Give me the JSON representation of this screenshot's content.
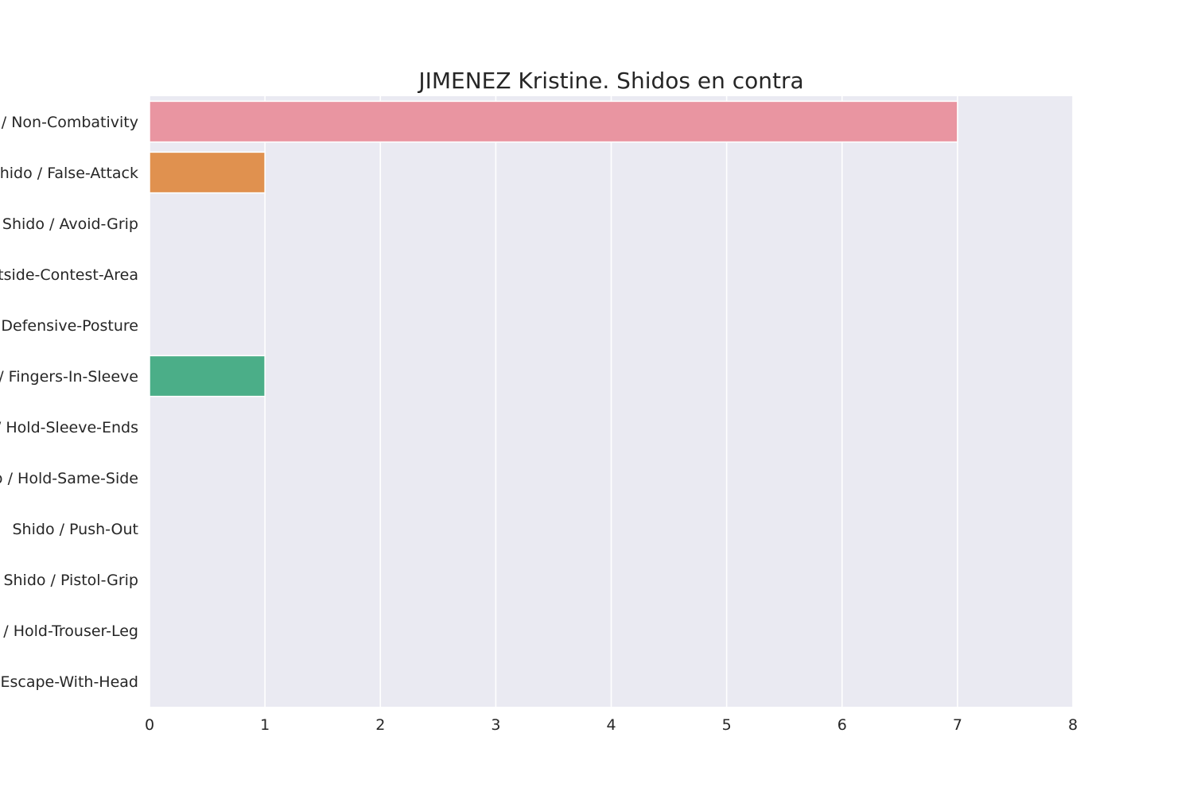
{
  "chart_data": {
    "type": "bar",
    "orientation": "horizontal",
    "title": "JIMENEZ Kristine. Shidos en contra",
    "xlabel": "",
    "ylabel": "",
    "categories": [
      "Shido / Non-Combativity",
      "Shido / False-Attack",
      "Shido / Avoid-Grip",
      "Shido / Outside-Contest-Area",
      "Shido / Defensive-Posture",
      "Shido / Fingers-In-Sleeve",
      "Shido / Hold-Sleeve-Ends",
      "Shido / Hold-Same-Side",
      "Shido / Push-Out",
      "Shido / Pistol-Grip",
      "Shido / Hold-Trouser-Leg",
      "Shido / Escape-With-Head"
    ],
    "values": [
      7,
      1,
      0,
      0,
      0,
      1,
      0,
      0,
      0,
      0,
      0,
      0
    ],
    "colors": [
      "#e995a1",
      "#e0914f",
      "#c69c4f",
      "#ad9f4f",
      "#8fa74e",
      "#4bae88",
      "#4fac9e",
      "#50a9ae",
      "#53a6c3",
      "#8e9fdf",
      "#c68ee0",
      "#e58bcc"
    ],
    "xlim": [
      0,
      8
    ],
    "xticks": [
      "0",
      "1",
      "2",
      "3",
      "4",
      "5",
      "6",
      "7",
      "8"
    ],
    "grid": true,
    "background": "#eaeaf2",
    "grid_color": "#ffffff",
    "legend": "none"
  }
}
